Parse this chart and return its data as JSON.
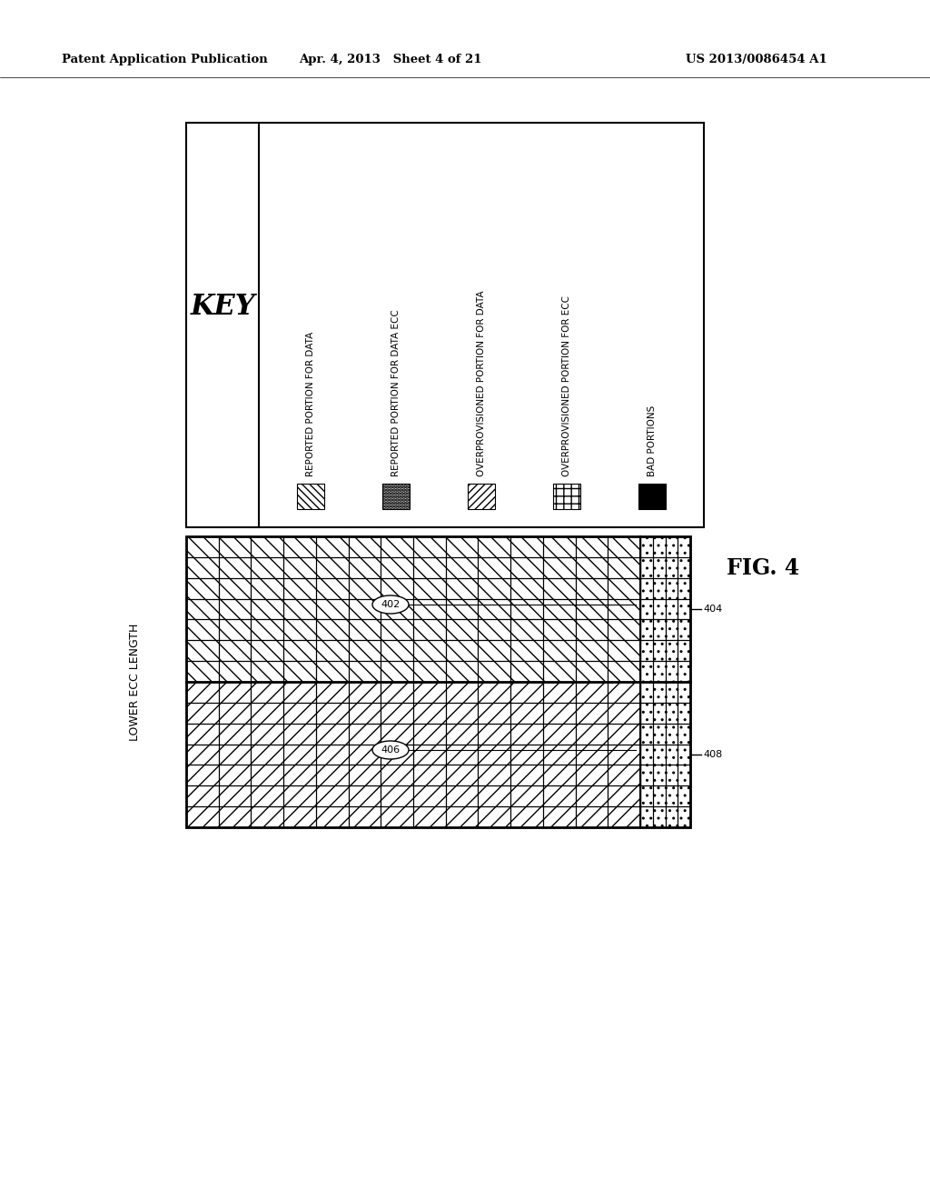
{
  "header_left": "Patent Application Publication",
  "header_mid": "Apr. 4, 2013   Sheet 4 of 21",
  "header_right": "US 2013/0086454 A1",
  "fig_label": "FIG. 4",
  "key_title": "KEY",
  "key_items": [
    "REPORTED PORTION FOR DATA",
    "REPORTED PORTION FOR DATA ECC",
    "OVERPROVISIONED PORTION FOR DATA",
    "OVERPROVISIONED PORTION FOR ECC",
    "BAD PORTIONS"
  ],
  "lower_ecc_label": "LOWER ECC LENGTH",
  "label_402": "402",
  "label_404": "404",
  "label_406": "406",
  "label_408": "408",
  "bg_color": "#ffffff"
}
